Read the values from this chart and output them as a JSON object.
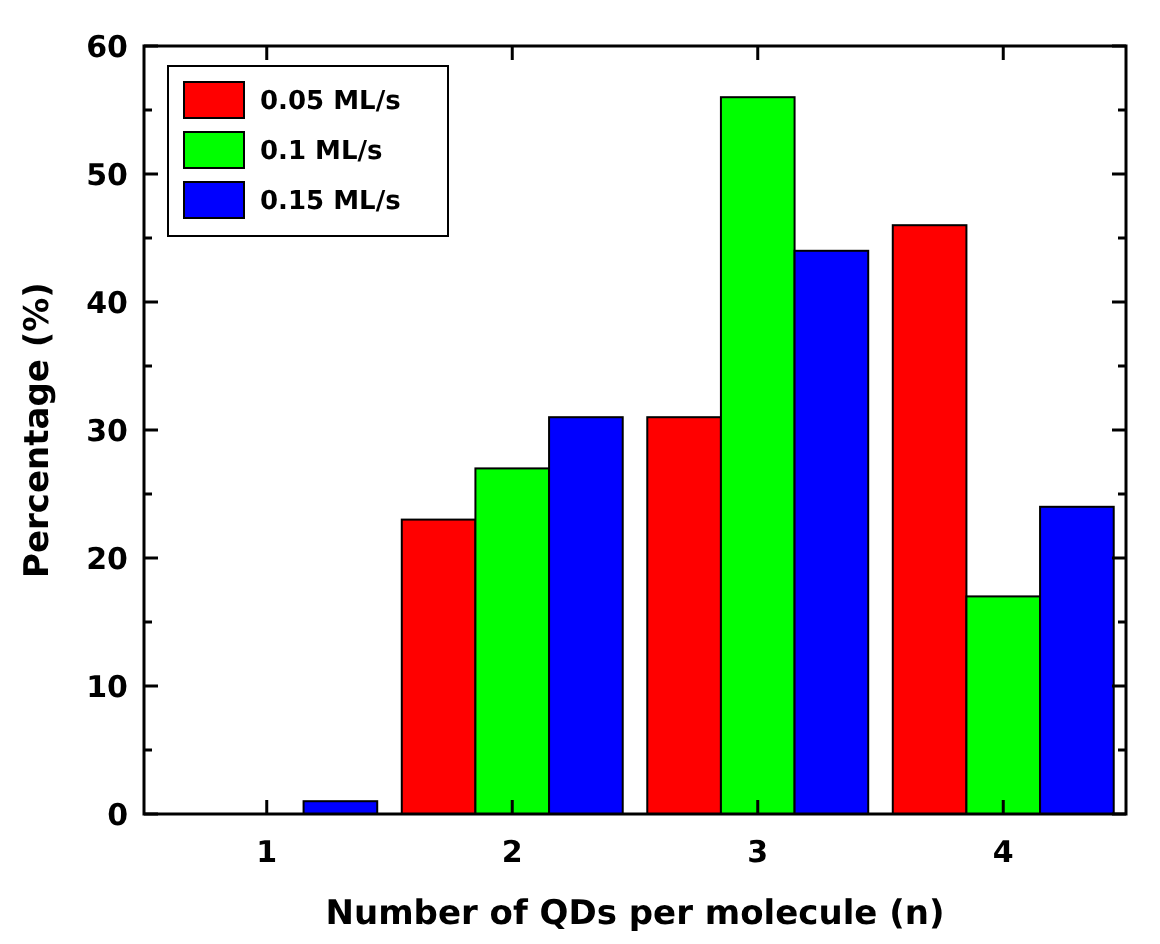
{
  "chart_data": {
    "type": "bar",
    "xlabel": "Number of QDs per molecule (n)",
    "ylabel": "Percentage (%)",
    "categories": [
      "1",
      "2",
      "3",
      "4"
    ],
    "series": [
      {
        "name": "0.05 ML/s",
        "color": "#ff0000",
        "values": [
          0,
          23,
          31,
          46
        ]
      },
      {
        "name": "0.1 ML/s",
        "color": "#00ff00",
        "values": [
          0,
          27,
          56,
          17
        ]
      },
      {
        "name": "0.15 ML/s",
        "color": "#0000ff",
        "values": [
          1,
          31,
          44,
          24
        ]
      }
    ],
    "ylim": [
      0,
      60
    ],
    "yticks": [
      0,
      {
        "value": 5,
        "label": null
      },
      10,
      {
        "value": 15,
        "label": null
      },
      20,
      {
        "value": 25,
        "label": null
      },
      30,
      {
        "value": 35,
        "label": null
      },
      40,
      {
        "value": 45,
        "label": null
      },
      50,
      {
        "value": 55,
        "label": null
      },
      60
    ],
    "legend": "top left",
    "grid": false
  }
}
